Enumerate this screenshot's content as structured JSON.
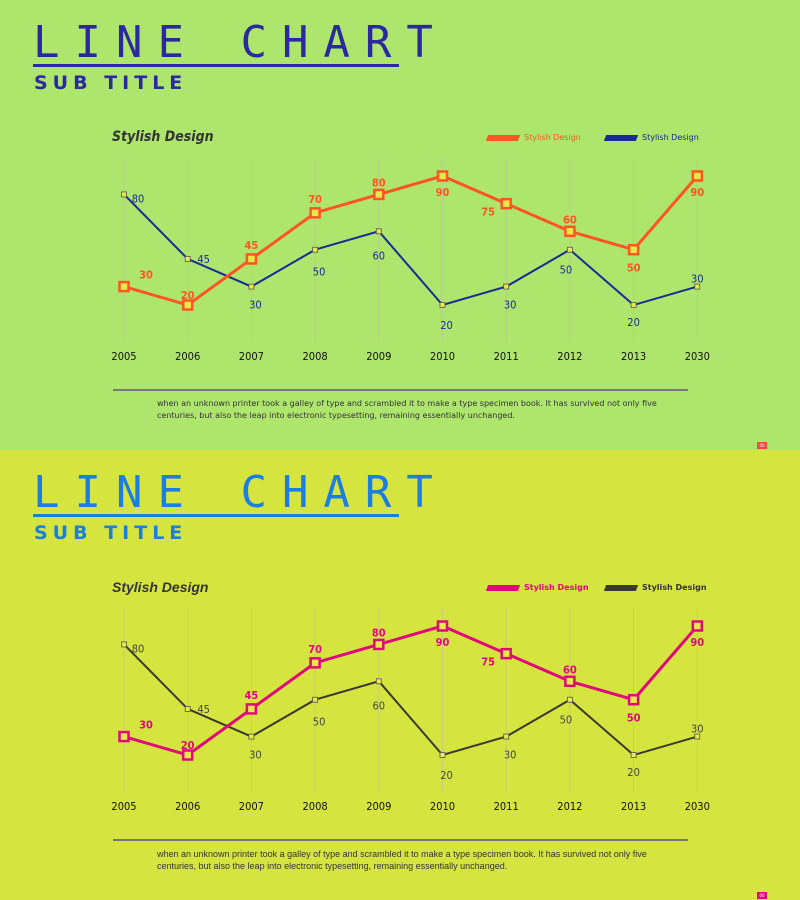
{
  "panels": [
    {
      "title": "LINE CHART",
      "subtitle": "SUB TITLE",
      "chart_title": "Stylish Design",
      "caption": "when an unknown printer took a galley of type and scrambled it to make a type specimen book. It has survived not only five centuries, but also the leap into electronic typesetting, remaining essentially unchanged.",
      "page_badge": "00",
      "colors": {
        "background": "#ade56d",
        "title": "#2a2a9e",
        "series1": "#ff5522",
        "series2": "#1c2a94",
        "marker_fill": "#e8e84a",
        "badge": "#ff4444"
      }
    },
    {
      "title": "LINE CHART",
      "subtitle": "SUB TITLE",
      "chart_title": "Stylish Design",
      "caption": "when an unknown printer took a galley of type and scrambled it to make a type specimen book. It has survived not only five centuries, but also the leap into electronic typesetting, remaining essentially unchanged.",
      "page_badge": "00",
      "colors": {
        "background": "#d6e440",
        "title": "#1a7fe0",
        "series1": "#e0087a",
        "series2": "#3a3a2a",
        "marker_fill": "#e8e84a",
        "badge": "#e0087a"
      }
    }
  ],
  "chart_data": [
    {
      "type": "line",
      "title": "Stylish Design",
      "categories": [
        "2005",
        "2006",
        "2007",
        "2008",
        "2009",
        "2010",
        "2011",
        "2012",
        "2013",
        "2030"
      ],
      "series": [
        {
          "name": "Stylish Design",
          "values": [
            30,
            20,
            45,
            70,
            80,
            90,
            75,
            60,
            50,
            90
          ]
        },
        {
          "name": "Stylish Design",
          "values": [
            80,
            45,
            30,
            50,
            60,
            20,
            30,
            50,
            20,
            30
          ]
        }
      ],
      "legend": "top-right",
      "grid": "vertical",
      "data_labels": true
    },
    {
      "type": "line",
      "title": "Stylish Design",
      "categories": [
        "2005",
        "2006",
        "2007",
        "2008",
        "2009",
        "2010",
        "2011",
        "2012",
        "2013",
        "2030"
      ],
      "series": [
        {
          "name": "Stylish Design",
          "values": [
            30,
            20,
            45,
            70,
            80,
            90,
            75,
            60,
            50,
            90
          ]
        },
        {
          "name": "Stylish Design",
          "values": [
            80,
            45,
            30,
            50,
            60,
            20,
            30,
            50,
            20,
            30
          ]
        }
      ],
      "legend": "top-right",
      "grid": "vertical",
      "data_labels": true
    }
  ]
}
